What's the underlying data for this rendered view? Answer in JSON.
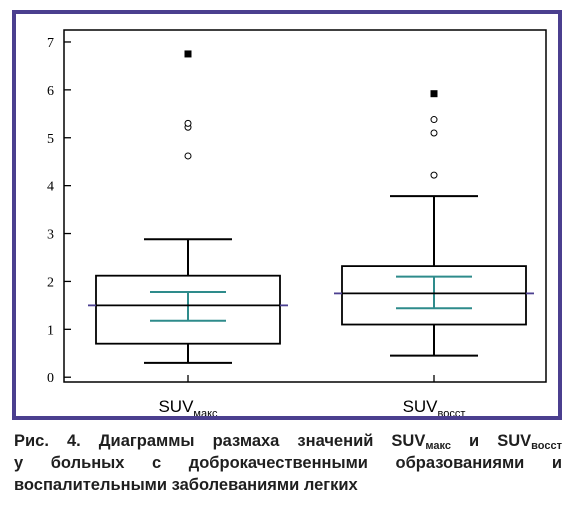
{
  "chart_data": {
    "type": "box",
    "ylim": [
      -0.1,
      7.25
    ],
    "yticks": [
      "0",
      "1",
      "2",
      "3",
      "4",
      "5",
      "6",
      "7"
    ],
    "categories": [
      {
        "main": "SUV",
        "sub": "макс"
      },
      {
        "main": "SUV",
        "sub": "восст"
      }
    ],
    "boxes": [
      {
        "whisker_low": 0.3,
        "q1": 0.7,
        "median": 1.5,
        "q3": 2.12,
        "whisker_high": 2.88,
        "ci_low": 1.18,
        "ci_high": 1.78,
        "outliers_open": [
          4.62,
          5.22,
          5.3
        ],
        "outliers_filled": [
          6.75
        ]
      },
      {
        "whisker_low": 0.45,
        "q1": 1.1,
        "median": 1.75,
        "q3": 2.32,
        "whisker_high": 3.78,
        "ci_low": 1.44,
        "ci_high": 2.1,
        "outliers_open": [
          4.22,
          5.1,
          5.38
        ],
        "outliers_filled": [
          5.92
        ]
      }
    ],
    "colors": {
      "box": "#000000",
      "ci": "#2e8b8b",
      "median_line": "#4b3f8f",
      "frame": "#4b3f8f"
    }
  },
  "caption": {
    "line1_prefix": "Рис. 4. Диаграммы размаха значений SUV",
    "sub1": "макс",
    "line1_mid": " и SUV",
    "sub2": "восст",
    "line2": "у больных с доброкачественными образованиями и",
    "line3": "воспалительными заболеваниями легких"
  }
}
